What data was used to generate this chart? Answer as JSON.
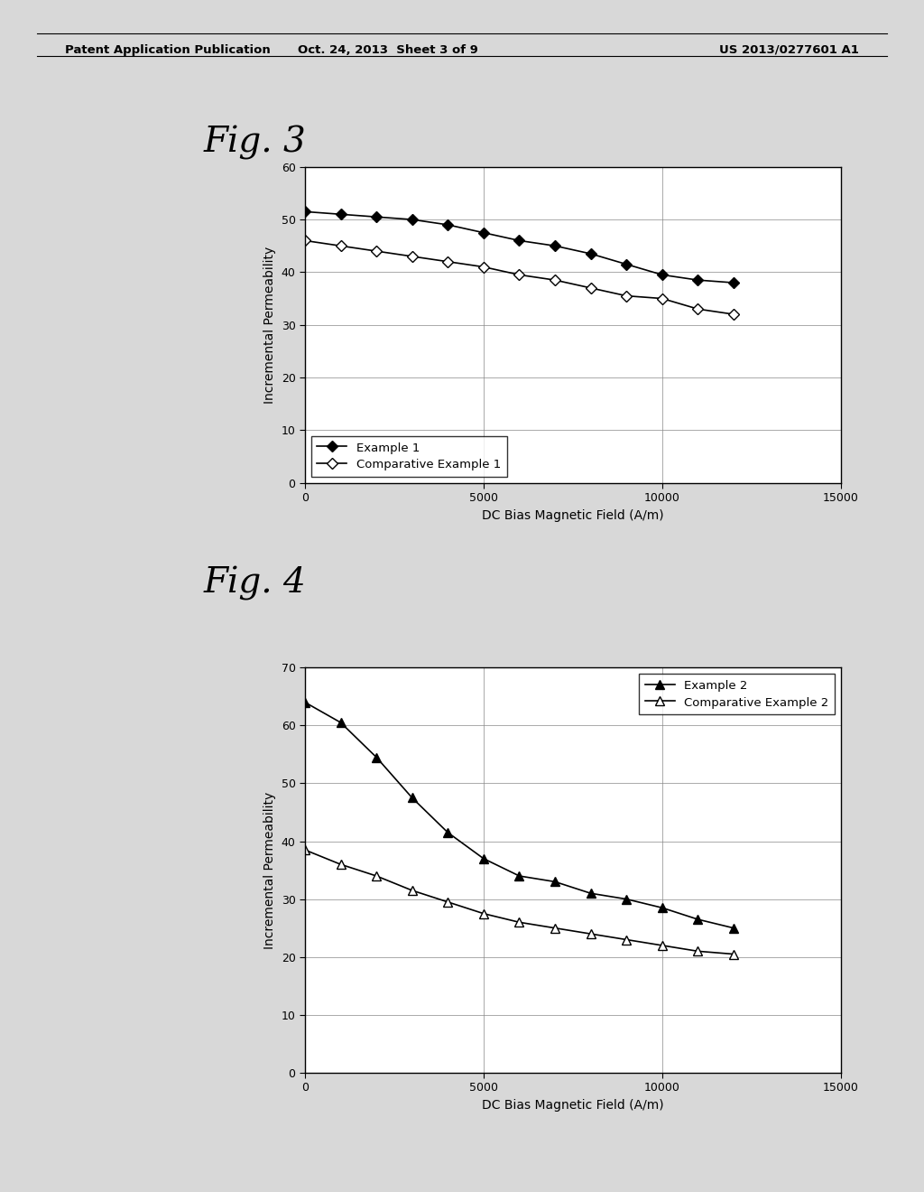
{
  "fig3": {
    "label": "Fig. 3",
    "xlabel": "DC Bias Magnetic Field (A/m)",
    "ylabel": "Incremental Permeability",
    "ylim": [
      0,
      60
    ],
    "xlim": [
      0,
      14000
    ],
    "yticks": [
      0,
      10,
      20,
      30,
      40,
      50,
      60
    ],
    "xticks": [
      0,
      5000,
      10000,
      15000
    ],
    "xtick_labels": [
      "0",
      "5000",
      "10000",
      "15000"
    ],
    "series1": {
      "label": "Example 1",
      "x": [
        0,
        1000,
        2000,
        3000,
        4000,
        5000,
        6000,
        7000,
        8000,
        9000,
        10000,
        11000,
        12000
      ],
      "y": [
        51.5,
        51.0,
        50.5,
        50.0,
        49.0,
        47.5,
        46.0,
        45.0,
        43.5,
        41.5,
        39.5,
        38.5,
        38.0
      ],
      "marker": "D",
      "filled": true
    },
    "series2": {
      "label": "Comparative Example 1",
      "x": [
        0,
        1000,
        2000,
        3000,
        4000,
        5000,
        6000,
        7000,
        8000,
        9000,
        10000,
        11000,
        12000
      ],
      "y": [
        46.0,
        45.0,
        44.0,
        43.0,
        42.0,
        41.0,
        39.5,
        38.5,
        37.0,
        35.5,
        35.0,
        33.0,
        32.0
      ],
      "marker": "D",
      "filled": false
    }
  },
  "fig4": {
    "label": "Fig. 4",
    "xlabel": "DC Bias Magnetic Field (A/m)",
    "ylabel": "Incremental Permeability",
    "ylim": [
      0,
      70
    ],
    "xlim": [
      0,
      14000
    ],
    "yticks": [
      0,
      10,
      20,
      30,
      40,
      50,
      60,
      70
    ],
    "xticks": [
      0,
      5000,
      10000,
      15000
    ],
    "xtick_labels": [
      "0",
      "5000",
      "10000",
      "15000"
    ],
    "series1": {
      "label": "Example 2",
      "x": [
        0,
        1000,
        2000,
        3000,
        4000,
        5000,
        6000,
        7000,
        8000,
        9000,
        10000,
        11000,
        12000
      ],
      "y": [
        64.0,
        60.5,
        54.5,
        47.5,
        41.5,
        37.0,
        34.0,
        33.0,
        31.0,
        30.0,
        28.5,
        26.5,
        25.0
      ],
      "marker": "^",
      "filled": true
    },
    "series2": {
      "label": "Comparative Example 2",
      "x": [
        0,
        1000,
        2000,
        3000,
        4000,
        5000,
        6000,
        7000,
        8000,
        9000,
        10000,
        11000,
        12000
      ],
      "y": [
        38.5,
        36.0,
        34.0,
        31.5,
        29.5,
        27.5,
        26.0,
        25.0,
        24.0,
        23.0,
        22.0,
        21.0,
        20.5
      ],
      "marker": "^",
      "filled": false
    }
  },
  "header_left": "Patent Application Publication",
  "header_center": "Oct. 24, 2013  Sheet 3 of 9",
  "header_right": "US 2013/0277601 A1",
  "page_bg": "#d8d8d8",
  "plot_bg": "#ffffff"
}
